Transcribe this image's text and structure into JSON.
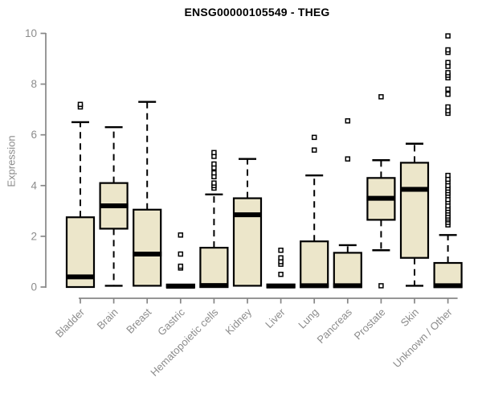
{
  "chart_data": {
    "type": "boxplot",
    "title": "ENSG00000105549 - THEG",
    "ylabel": "Expression",
    "xlabel": "",
    "ylim": [
      0,
      10
    ],
    "yticks": [
      0,
      2,
      4,
      6,
      8,
      10
    ],
    "grid": false,
    "legend": "none",
    "categories": [
      "Bladder",
      "Brain",
      "Breast",
      "Gastric",
      "Hematopoietic cells",
      "Kidney",
      "Liver",
      "Lung",
      "Pancreas",
      "Prostate",
      "Skin",
      "Unknown / Other"
    ],
    "series": [
      {
        "category": "Bladder",
        "q1": 0,
        "median": 0.4,
        "q3": 2.75,
        "whisker_low": 0,
        "whisker_high": 6.5,
        "outliers": [
          7.1,
          7.2
        ]
      },
      {
        "category": "Brain",
        "q1": 2.3,
        "median": 3.2,
        "q3": 4.1,
        "whisker_low": 0.05,
        "whisker_high": 6.3,
        "outliers": []
      },
      {
        "category": "Breast",
        "q1": 0.05,
        "median": 1.3,
        "q3": 3.05,
        "whisker_low": 0.05,
        "whisker_high": 7.3,
        "outliers": []
      },
      {
        "category": "Gastric",
        "q1": 0,
        "median": 0.03,
        "q3": 0.1,
        "whisker_low": 0,
        "whisker_high": 0.1,
        "outliers": [
          0.75,
          0.82,
          1.3,
          2.05
        ]
      },
      {
        "category": "Hematopoietic cells",
        "q1": 0,
        "median": 0.06,
        "q3": 1.55,
        "whisker_low": 0,
        "whisker_high": 3.65,
        "outliers": [
          3.9,
          4.0,
          4.1,
          4.35,
          4.5,
          4.7,
          4.85,
          5.15,
          5.3
        ]
      },
      {
        "category": "Kidney",
        "q1": 0.05,
        "median": 2.85,
        "q3": 3.5,
        "whisker_low": 0.05,
        "whisker_high": 5.05,
        "outliers": []
      },
      {
        "category": "Liver",
        "q1": 0,
        "median": 0.04,
        "q3": 0.1,
        "whisker_low": 0,
        "whisker_high": 0.1,
        "outliers": [
          0.5,
          0.9,
          1.0,
          1.15,
          1.45
        ]
      },
      {
        "category": "Lung",
        "q1": 0,
        "median": 0.05,
        "q3": 1.8,
        "whisker_low": 0,
        "whisker_high": 4.4,
        "outliers": [
          5.4,
          5.9
        ]
      },
      {
        "category": "Pancreas",
        "q1": 0,
        "median": 0.05,
        "q3": 1.35,
        "whisker_low": 0,
        "whisker_high": 1.65,
        "outliers": [
          5.05,
          6.55
        ]
      },
      {
        "category": "Prostate",
        "q1": 2.65,
        "median": 3.5,
        "q3": 4.3,
        "whisker_low": 1.45,
        "whisker_high": 5.0,
        "outliers": [
          0.05,
          7.5
        ]
      },
      {
        "category": "Skin",
        "q1": 1.15,
        "median": 3.85,
        "q3": 4.9,
        "whisker_low": 0.05,
        "whisker_high": 5.65,
        "outliers": []
      },
      {
        "category": "Unknown / Other",
        "q1": 0,
        "median": 0.05,
        "q3": 0.95,
        "whisker_low": 0,
        "whisker_high": 2.05,
        "outliers": [
          2.45,
          2.55,
          2.65,
          2.72,
          2.8,
          2.9,
          3.0,
          3.1,
          3.2,
          3.35,
          3.45,
          3.6,
          3.7,
          3.8,
          3.9,
          4.0,
          4.15,
          4.25,
          4.4,
          6.85,
          6.95,
          7.1,
          7.6,
          7.8,
          8.25,
          8.35,
          8.45,
          8.7,
          8.85,
          9.25,
          9.35,
          9.9
        ]
      }
    ]
  },
  "colors": {
    "box_fill": "#ece6ca",
    "box_stroke": "#000000",
    "median": "#000000",
    "axis": "#878787",
    "tick_label": "#8c8c8c",
    "title": "#000000",
    "background": "#ffffff",
    "outlier_fill": "#ffffff"
  }
}
